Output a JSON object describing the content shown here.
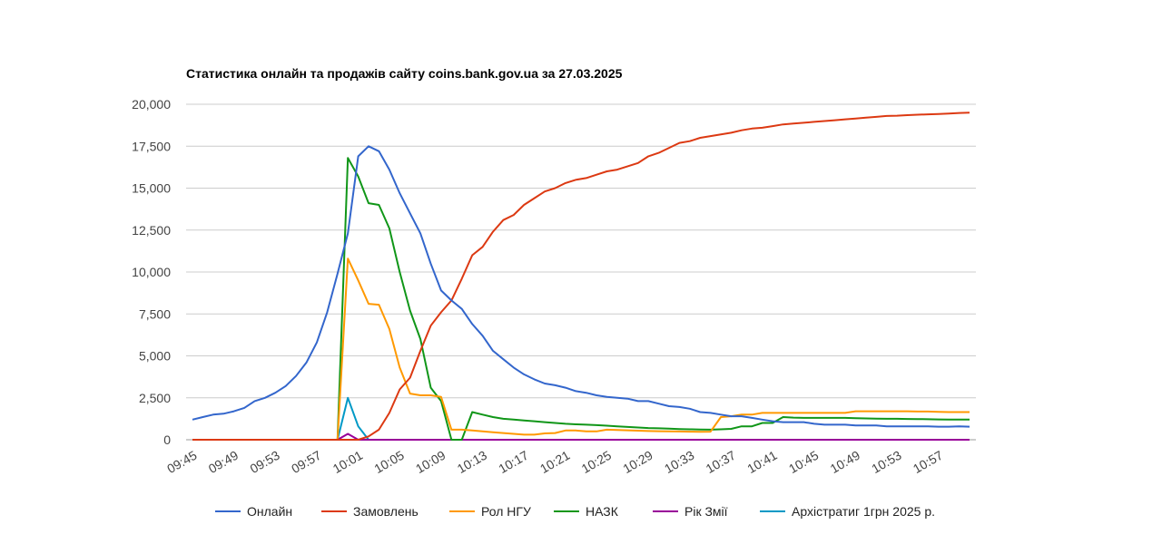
{
  "chart_data": {
    "type": "line",
    "title": "Статистика онлайн та продажів сайту coins.bank.gov.ua за 27.03.2025",
    "xlabel": "",
    "ylabel": "",
    "ylim": [
      0,
      20000
    ],
    "yticks": [
      "0",
      "2,500",
      "5,000",
      "7,500",
      "10,000",
      "12,500",
      "15,000",
      "17,500",
      "20,000"
    ],
    "ytick_values": [
      0,
      2500,
      5000,
      7500,
      10000,
      12500,
      15000,
      17500,
      20000
    ],
    "x_start": "09:45",
    "x_step_minutes": 1,
    "xtick_labels": [
      "09:45",
      "09:49",
      "09:53",
      "09:57",
      "10:01",
      "10:05",
      "10:09",
      "10:13",
      "10:17",
      "10:21",
      "10:25",
      "10:29",
      "10:33",
      "10:37",
      "10:41",
      "10:45",
      "10:49",
      "10:53",
      "10:57"
    ],
    "xtick_every": 4,
    "grid": true,
    "legend_position": "bottom",
    "series": [
      {
        "name": "Онлайн",
        "color": "#3366cc",
        "values": [
          1200,
          1350,
          1500,
          1550,
          1700,
          1900,
          2300,
          2500,
          2800,
          3200,
          3800,
          4600,
          5800,
          7600,
          9900,
          12300,
          16900,
          17500,
          17200,
          16100,
          14700,
          13500,
          12300,
          10500,
          8900,
          8300,
          7800,
          6900,
          6200,
          5300,
          4800,
          4300,
          3900,
          3600,
          3350,
          3250,
          3100,
          2900,
          2800,
          2650,
          2550,
          2500,
          2450,
          2300,
          2300,
          2150,
          2000,
          1950,
          1850,
          1650,
          1600,
          1500,
          1400,
          1400,
          1300,
          1200,
          1100,
          1050,
          1050,
          1050,
          950,
          900,
          900,
          900,
          850,
          850,
          850,
          800,
          800,
          800,
          800,
          800,
          780,
          780,
          800,
          780
        ]
      },
      {
        "name": "Замовлень",
        "color": "#dc3912",
        "values": [
          0,
          0,
          0,
          0,
          0,
          0,
          0,
          0,
          0,
          0,
          0,
          0,
          0,
          0,
          0,
          0,
          0,
          200,
          600,
          1600,
          3000,
          3700,
          5300,
          6800,
          7600,
          8300,
          9600,
          11000,
          11500,
          12400,
          13100,
          13400,
          14000,
          14400,
          14800,
          15000,
          15300,
          15500,
          15600,
          15800,
          16000,
          16100,
          16300,
          16500,
          16900,
          17100,
          17400,
          17700,
          17800,
          18000,
          18100,
          18200,
          18300,
          18450,
          18550,
          18600,
          18700,
          18800,
          18850,
          18900,
          18950,
          19000,
          19050,
          19100,
          19150,
          19200,
          19250,
          19300,
          19320,
          19350,
          19380,
          19400,
          19420,
          19450,
          19480,
          19500
        ]
      },
      {
        "name": "Рол НГУ",
        "color": "#ff9900",
        "values": [
          0,
          0,
          0,
          0,
          0,
          0,
          0,
          0,
          0,
          0,
          0,
          0,
          0,
          0,
          0,
          10800,
          9500,
          8100,
          8050,
          6600,
          4300,
          2750,
          2650,
          2650,
          2550,
          600,
          600,
          550,
          500,
          450,
          400,
          350,
          300,
          300,
          380,
          400,
          550,
          550,
          500,
          500,
          600,
          580,
          560,
          540,
          520,
          510,
          500,
          490,
          480,
          470,
          480,
          1350,
          1400,
          1500,
          1500,
          1600,
          1600,
          1600,
          1600,
          1600,
          1600,
          1600,
          1600,
          1600,
          1700,
          1700,
          1700,
          1700,
          1700,
          1700,
          1680,
          1680,
          1660,
          1650,
          1650,
          1650
        ]
      },
      {
        "name": "НАЗК",
        "color": "#109618",
        "values": [
          0,
          0,
          0,
          0,
          0,
          0,
          0,
          0,
          0,
          0,
          0,
          0,
          0,
          0,
          0,
          16800,
          15700,
          14100,
          14000,
          12600,
          10000,
          7700,
          6000,
          3100,
          2300,
          0,
          0,
          1650,
          1500,
          1350,
          1250,
          1200,
          1150,
          1100,
          1050,
          1000,
          950,
          920,
          900,
          870,
          840,
          800,
          760,
          730,
          700,
          680,
          660,
          640,
          620,
          610,
          600,
          620,
          650,
          800,
          800,
          1000,
          1000,
          1350,
          1320,
          1300,
          1300,
          1300,
          1300,
          1300,
          1280,
          1270,
          1260,
          1250,
          1250,
          1240,
          1230,
          1220,
          1210,
          1200,
          1200,
          1200
        ]
      },
      {
        "name": "Рік Змії",
        "color": "#990099",
        "values": [
          0,
          0,
          0,
          0,
          0,
          0,
          0,
          0,
          0,
          0,
          0,
          0,
          0,
          0,
          0,
          350,
          0,
          0,
          0,
          0,
          0,
          0,
          0,
          0,
          0,
          0,
          0,
          0,
          0,
          0,
          0,
          0,
          0,
          0,
          0,
          0,
          0,
          0,
          0,
          0,
          0,
          0,
          0,
          0,
          0,
          0,
          0,
          0,
          0,
          0,
          0,
          0,
          0,
          0,
          0,
          0,
          0,
          0,
          0,
          0,
          0,
          0,
          0,
          0,
          0,
          0,
          0,
          0,
          0,
          0,
          0,
          0,
          0,
          0,
          0,
          0
        ]
      },
      {
        "name": "Архістратиг 1грн 2025 р.",
        "color": "#0099c6",
        "values": [
          0,
          0,
          0,
          0,
          0,
          0,
          0,
          0,
          0,
          0,
          0,
          0,
          0,
          0,
          0,
          2500,
          800,
          0,
          0,
          0,
          0,
          0,
          0,
          0,
          0,
          0,
          0,
          0,
          0,
          0,
          0,
          0,
          0,
          0,
          0,
          0,
          0,
          0,
          0,
          0,
          0,
          0,
          0,
          0,
          0,
          0,
          0,
          0,
          0,
          0,
          0,
          0,
          0,
          0,
          0,
          0,
          0,
          0,
          0,
          0,
          0,
          0,
          0,
          0,
          0,
          0,
          0,
          0,
          0,
          0,
          0,
          0,
          0,
          0,
          0,
          0
        ]
      }
    ]
  }
}
